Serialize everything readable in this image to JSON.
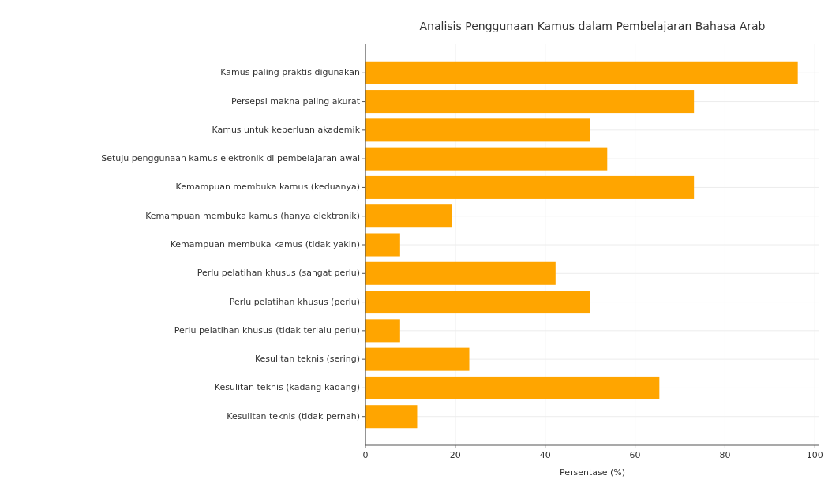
{
  "chart_data": {
    "type": "bar",
    "orientation": "horizontal",
    "title": "Analisis Penggunaan Kamus dalam Pembelajaran Bahasa Arab",
    "xlabel": "Persentase (%)",
    "categories": [
      "Kamus paling praktis digunakan",
      "Persepsi makna paling akurat",
      "Kamus untuk keperluan akademik",
      "Setuju penggunaan kamus elektronik di pembelajaran awal",
      "Kemampuan membuka kamus (keduanya)",
      "Kemampuan membuka kamus (hanya elektronik)",
      "Kemampuan membuka kamus (tidak yakin)",
      "Perlu pelatihan khusus (sangat perlu)",
      "Perlu pelatihan khusus (perlu)",
      "Perlu pelatihan khusus (tidak terlalu perlu)",
      "Kesulitan teknis (sering)",
      "Kesulitan teknis (kadang-kadang)",
      "Kesulitan teknis (tidak pernah)"
    ],
    "values": [
      96.2,
      73.1,
      50,
      53.8,
      73.1,
      19.2,
      7.7,
      42.3,
      50,
      7.7,
      23.1,
      65.4,
      11.5
    ],
    "color": "#ffa500",
    "xlim": [
      0,
      101
    ],
    "xticks": [
      0,
      20,
      40,
      60,
      80,
      100
    ],
    "grid": true
  }
}
